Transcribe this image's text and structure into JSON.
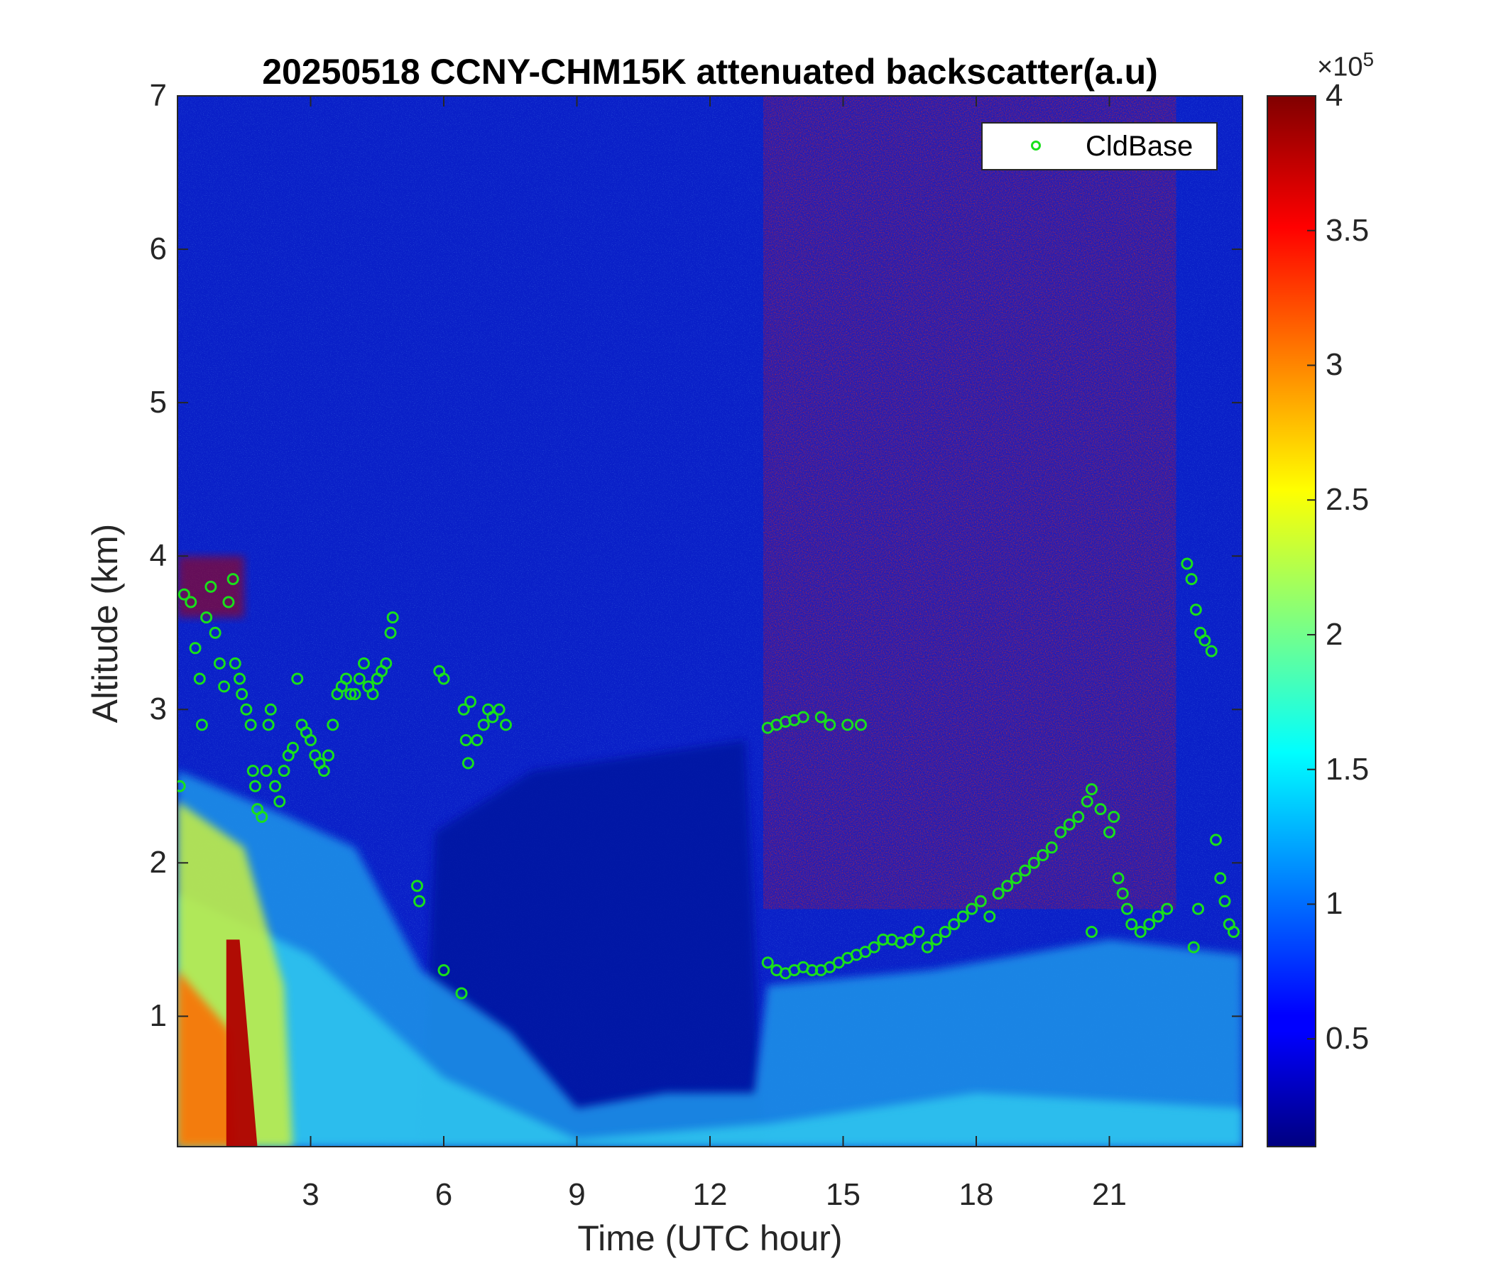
{
  "chart_data": {
    "type": "heatmap",
    "title": "20250518 CCNY-CHM15K attenuated backscatter(a.u)",
    "xlabel": "Time (UTC hour)",
    "ylabel": "Altitude (km)",
    "xlim": [
      0,
      24
    ],
    "ylim": [
      0.15,
      7
    ],
    "xticks": [
      "3",
      "6",
      "9",
      "12",
      "15",
      "18",
      "21"
    ],
    "yticks": [
      "1",
      "2",
      "3",
      "4",
      "5",
      "6",
      "7"
    ],
    "colorbar": {
      "colormap": "jet",
      "range": [
        0.1,
        4
      ],
      "exponent_base": "×10",
      "exponent_power": "5",
      "ticks": [
        "0.5",
        "1",
        "1.5",
        "2",
        "2.5",
        "3",
        "3.5",
        "4"
      ]
    },
    "legend": {
      "label": "CldBase",
      "position": "top-right",
      "marker": "open-circle",
      "color": "#19e01b"
    },
    "series": [
      {
        "name": "CldBase",
        "points": [
          [
            0.05,
            2.5
          ],
          [
            0.15,
            3.75
          ],
          [
            0.3,
            3.7
          ],
          [
            0.4,
            3.4
          ],
          [
            0.5,
            3.2
          ],
          [
            0.55,
            2.9
          ],
          [
            0.65,
            3.6
          ],
          [
            0.75,
            3.8
          ],
          [
            0.85,
            3.5
          ],
          [
            0.95,
            3.3
          ],
          [
            1.05,
            3.15
          ],
          [
            1.15,
            3.7
          ],
          [
            1.25,
            3.85
          ],
          [
            1.3,
            3.3
          ],
          [
            1.4,
            3.2
          ],
          [
            1.45,
            3.1
          ],
          [
            1.55,
            3.0
          ],
          [
            1.65,
            2.9
          ],
          [
            1.7,
            2.6
          ],
          [
            1.75,
            2.5
          ],
          [
            1.8,
            2.35
          ],
          [
            1.9,
            2.3
          ],
          [
            2.0,
            2.6
          ],
          [
            2.05,
            2.9
          ],
          [
            2.1,
            3.0
          ],
          [
            2.2,
            2.5
          ],
          [
            2.3,
            2.4
          ],
          [
            2.4,
            2.6
          ],
          [
            2.5,
            2.7
          ],
          [
            2.6,
            2.75
          ],
          [
            2.7,
            3.2
          ],
          [
            2.8,
            2.9
          ],
          [
            2.9,
            2.85
          ],
          [
            3.0,
            2.8
          ],
          [
            3.1,
            2.7
          ],
          [
            3.2,
            2.65
          ],
          [
            3.3,
            2.6
          ],
          [
            3.4,
            2.7
          ],
          [
            3.5,
            2.9
          ],
          [
            3.6,
            3.1
          ],
          [
            3.7,
            3.15
          ],
          [
            3.8,
            3.2
          ],
          [
            3.9,
            3.1
          ],
          [
            4.0,
            3.1
          ],
          [
            4.1,
            3.2
          ],
          [
            4.2,
            3.3
          ],
          [
            4.3,
            3.15
          ],
          [
            4.4,
            3.1
          ],
          [
            4.5,
            3.2
          ],
          [
            4.6,
            3.25
          ],
          [
            4.7,
            3.3
          ],
          [
            4.8,
            3.5
          ],
          [
            4.85,
            3.6
          ],
          [
            5.4,
            1.85
          ],
          [
            5.45,
            1.75
          ],
          [
            5.9,
            3.25
          ],
          [
            6.0,
            3.2
          ],
          [
            6.0,
            1.3
          ],
          [
            6.4,
            1.15
          ],
          [
            6.45,
            3.0
          ],
          [
            6.5,
            2.8
          ],
          [
            6.55,
            2.65
          ],
          [
            6.6,
            3.05
          ],
          [
            6.75,
            2.8
          ],
          [
            6.9,
            2.9
          ],
          [
            7.0,
            3.0
          ],
          [
            7.1,
            2.95
          ],
          [
            7.25,
            3.0
          ],
          [
            7.4,
            2.9
          ],
          [
            13.3,
            2.88
          ],
          [
            13.5,
            2.9
          ],
          [
            13.7,
            2.92
          ],
          [
            13.9,
            2.93
          ],
          [
            14.1,
            2.95
          ],
          [
            14.5,
            2.95
          ],
          [
            14.7,
            2.9
          ],
          [
            15.1,
            2.9
          ],
          [
            15.4,
            2.9
          ],
          [
            13.3,
            1.35
          ],
          [
            13.5,
            1.3
          ],
          [
            13.7,
            1.28
          ],
          [
            13.9,
            1.3
          ],
          [
            14.1,
            1.32
          ],
          [
            14.3,
            1.3
          ],
          [
            14.5,
            1.3
          ],
          [
            14.7,
            1.32
          ],
          [
            14.9,
            1.35
          ],
          [
            15.1,
            1.38
          ],
          [
            15.3,
            1.4
          ],
          [
            15.5,
            1.42
          ],
          [
            15.7,
            1.45
          ],
          [
            15.9,
            1.5
          ],
          [
            16.1,
            1.5
          ],
          [
            16.3,
            1.48
          ],
          [
            16.5,
            1.5
          ],
          [
            16.7,
            1.55
          ],
          [
            16.9,
            1.45
          ],
          [
            17.1,
            1.5
          ],
          [
            17.3,
            1.55
          ],
          [
            17.5,
            1.6
          ],
          [
            17.7,
            1.65
          ],
          [
            17.9,
            1.7
          ],
          [
            18.1,
            1.75
          ],
          [
            18.3,
            1.65
          ],
          [
            18.5,
            1.8
          ],
          [
            18.7,
            1.85
          ],
          [
            18.9,
            1.9
          ],
          [
            19.1,
            1.95
          ],
          [
            19.3,
            2.0
          ],
          [
            19.5,
            2.05
          ],
          [
            19.7,
            2.1
          ],
          [
            19.9,
            2.2
          ],
          [
            20.1,
            2.25
          ],
          [
            20.3,
            2.3
          ],
          [
            20.5,
            2.4
          ],
          [
            20.6,
            2.48
          ],
          [
            20.8,
            2.35
          ],
          [
            21.0,
            2.2
          ],
          [
            21.1,
            2.3
          ],
          [
            21.2,
            1.9
          ],
          [
            21.3,
            1.8
          ],
          [
            21.4,
            1.7
          ],
          [
            21.5,
            1.6
          ],
          [
            21.7,
            1.55
          ],
          [
            21.9,
            1.6
          ],
          [
            22.1,
            1.65
          ],
          [
            22.3,
            1.7
          ],
          [
            20.6,
            1.55
          ],
          [
            22.75,
            3.95
          ],
          [
            22.85,
            3.85
          ],
          [
            22.95,
            3.65
          ],
          [
            23.05,
            3.5
          ],
          [
            23.15,
            3.45
          ],
          [
            23.3,
            3.38
          ],
          [
            22.9,
            1.45
          ],
          [
            23.0,
            1.7
          ],
          [
            23.4,
            2.15
          ],
          [
            23.5,
            1.9
          ],
          [
            23.6,
            1.75
          ],
          [
            23.7,
            1.6
          ],
          [
            23.8,
            1.55
          ]
        ]
      }
    ]
  }
}
